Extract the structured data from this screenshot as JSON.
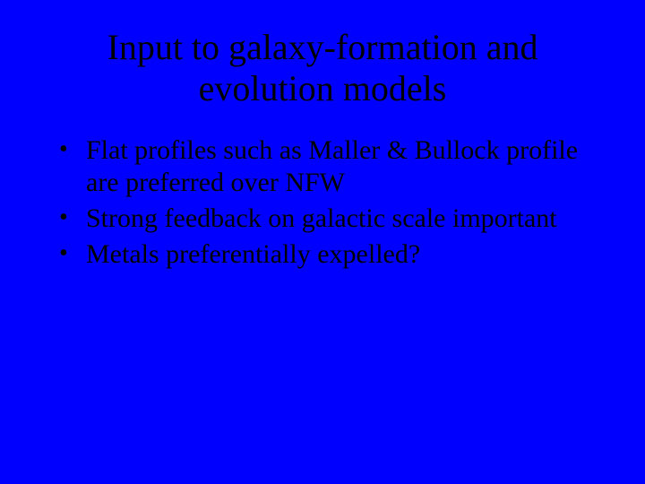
{
  "slide": {
    "background_color": "#0000ff",
    "text_color": "#000000",
    "font_family": "Times New Roman, serif",
    "title": {
      "text": "Input to galaxy-formation and evolution models",
      "font_size_pt": 40,
      "align": "center"
    },
    "bullets": {
      "font_size_pt": 30,
      "items": [
        "Flat profiles such as Maller & Bullock profile are preferred over NFW",
        "Strong feedback on galactic scale important",
        "Metals preferentially expelled?"
      ]
    }
  }
}
